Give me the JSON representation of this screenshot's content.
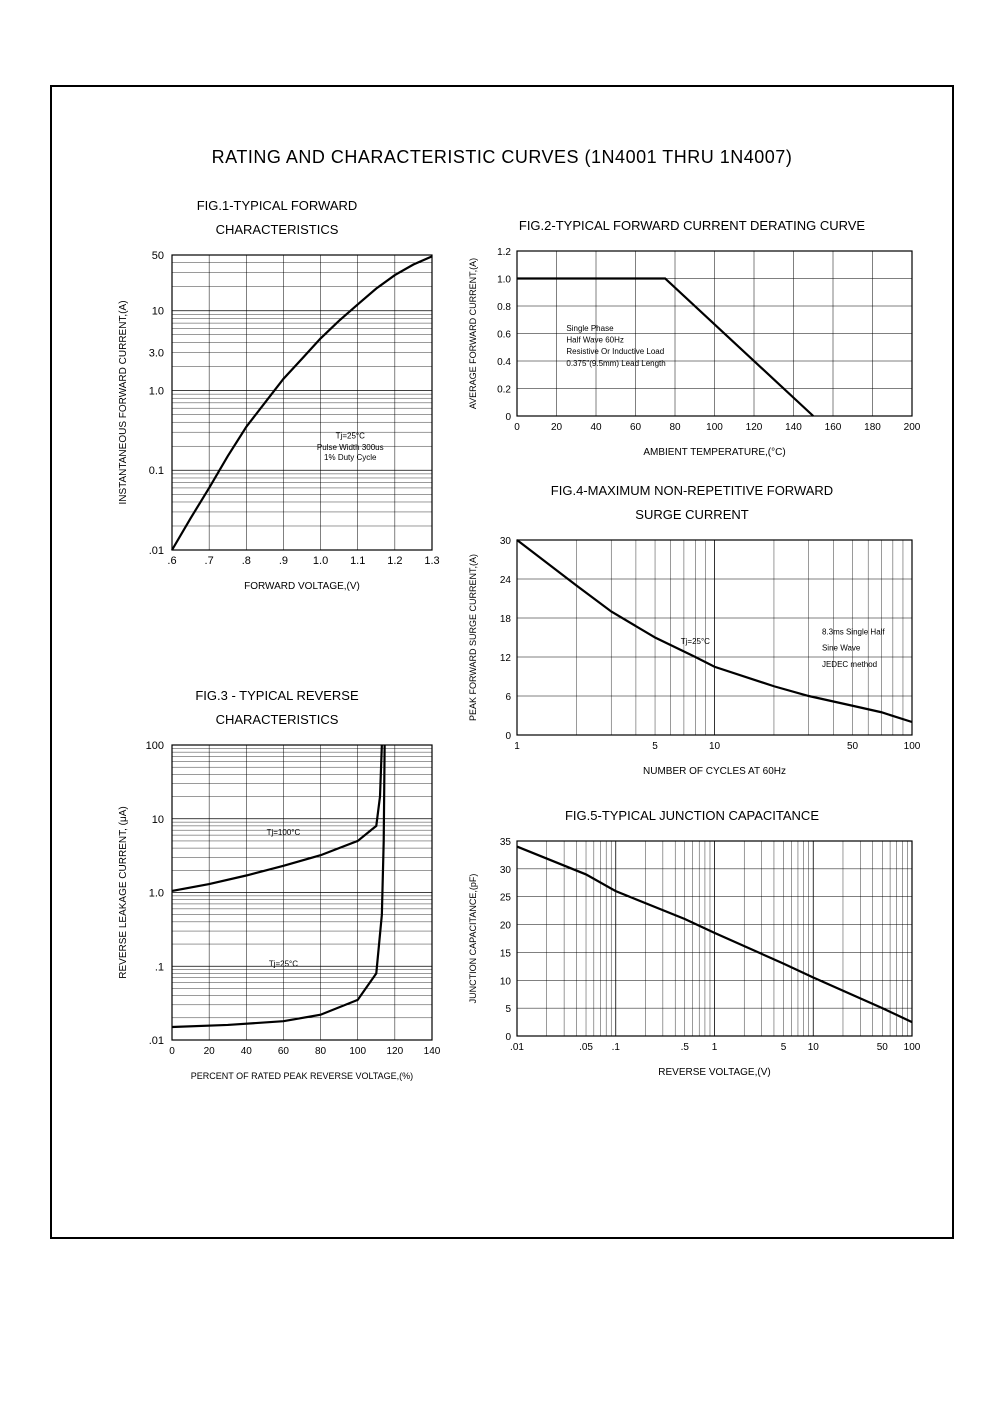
{
  "page_title": "RATING AND CHARACTERISTIC CURVES (1N4001 THRU 1N4007)",
  "colors": {
    "stroke": "#000000",
    "grid": "#000000",
    "bg": "#ffffff"
  },
  "fig1": {
    "title1": "FIG.1-TYPICAL FORWARD",
    "title2": "CHARACTERISTICS",
    "xlabel": "FORWARD VOLTAGE,(V)",
    "ylabel": "INSTANTANEOUS FORWARD CURRENT,(A)",
    "x_ticks": [
      ".6",
      ".7",
      ".8",
      ".9",
      "1.0",
      "1.1",
      "1.2",
      "1.3"
    ],
    "y_major_ticks": [
      "50",
      "10",
      "3.0",
      "1.0",
      "0.1",
      ".01"
    ],
    "note1": "Tj=25°C",
    "note2": "Pulse Width 300us",
    "note3": "1% Duty Cycle",
    "data": [
      [
        0.6,
        0.01
      ],
      [
        0.65,
        0.025
      ],
      [
        0.7,
        0.06
      ],
      [
        0.75,
        0.15
      ],
      [
        0.8,
        0.35
      ],
      [
        0.85,
        0.7
      ],
      [
        0.9,
        1.4
      ],
      [
        0.95,
        2.5
      ],
      [
        1.0,
        4.5
      ],
      [
        1.05,
        7.5
      ],
      [
        1.1,
        12
      ],
      [
        1.15,
        19
      ],
      [
        1.2,
        28
      ],
      [
        1.25,
        38
      ],
      [
        1.3,
        48
      ]
    ],
    "xlim": [
      0.6,
      1.3
    ],
    "ylim_log": [
      0.01,
      50
    ],
    "line_width": 2.2
  },
  "fig2": {
    "title": "FIG.2-TYPICAL FORWARD CURRENT DERATING CURVE",
    "xlabel": "AMBIENT TEMPERATURE,(°C)",
    "ylabel": "AVERAGE FORWARD CURRENT,(A)",
    "x_ticks": [
      "0",
      "20",
      "40",
      "60",
      "80",
      "100",
      "120",
      "140",
      "160",
      "180",
      "200"
    ],
    "y_ticks": [
      "0",
      "0.2",
      "0.4",
      "0.6",
      "0.8",
      "1.0",
      "1.2"
    ],
    "notes": [
      "Single Phase",
      "Half Wave 60Hz",
      "Resistive Or Inductive Load",
      "0.375\"(9.5mm) Lead Length"
    ],
    "data": [
      [
        0,
        1.0
      ],
      [
        75,
        1.0
      ],
      [
        150,
        0
      ]
    ],
    "xlim": [
      0,
      200
    ],
    "ylim": [
      0,
      1.2
    ],
    "line_width": 2.2
  },
  "fig4": {
    "title1": "FIG.4-MAXIMUM NON-REPETITIVE FORWARD",
    "title2": "SURGE CURRENT",
    "xlabel": "NUMBER OF CYCLES AT 60Hz",
    "ylabel": "PEAK FORWARD SURGE CURRENT,(A)",
    "x_ticks": [
      "1",
      "5",
      "10",
      "50",
      "100"
    ],
    "y_ticks": [
      "0",
      "6",
      "12",
      "18",
      "24",
      "30"
    ],
    "note1": "Tj=25°C",
    "note2a": "8.3ms Single Half",
    "note2b": "Sine Wave",
    "note2c": "JEDEC method",
    "data": [
      [
        1,
        30
      ],
      [
        2,
        23
      ],
      [
        3,
        19
      ],
      [
        5,
        15
      ],
      [
        8,
        12
      ],
      [
        10,
        10.5
      ],
      [
        20,
        7.5
      ],
      [
        30,
        6
      ],
      [
        50,
        4.5
      ],
      [
        70,
        3.5
      ],
      [
        100,
        2
      ]
    ],
    "xlim_log": [
      1,
      100
    ],
    "ylim": [
      0,
      30
    ],
    "line_width": 2.2
  },
  "fig3": {
    "title1": "FIG.3 - TYPICAL REVERSE",
    "title2": "CHARACTERISTICS",
    "xlabel": "PERCENT OF RATED PEAK REVERSE VOLTAGE,(%)",
    "ylabel": "REVERSE LEAKAGE CURRENT, (μA)",
    "x_ticks": [
      "0",
      "20",
      "40",
      "60",
      "80",
      "100",
      "120",
      "140"
    ],
    "y_major_ticks": [
      "100",
      "10",
      "1.0",
      ".1",
      ".01"
    ],
    "note_hot": "Tj=100°C",
    "note_cold": "Tj=25°C",
    "data_hot": [
      [
        0,
        1.05
      ],
      [
        20,
        1.3
      ],
      [
        40,
        1.7
      ],
      [
        60,
        2.3
      ],
      [
        80,
        3.2
      ],
      [
        100,
        5
      ],
      [
        110,
        8
      ],
      [
        112,
        20
      ],
      [
        113,
        100
      ]
    ],
    "data_cold": [
      [
        0,
        0.015
      ],
      [
        30,
        0.016
      ],
      [
        60,
        0.018
      ],
      [
        80,
        0.022
      ],
      [
        100,
        0.035
      ],
      [
        110,
        0.08
      ],
      [
        113,
        0.5
      ],
      [
        114,
        5
      ],
      [
        114.5,
        100
      ]
    ],
    "xlim": [
      0,
      140
    ],
    "ylim_log": [
      0.01,
      100
    ],
    "line_width": 2.2
  },
  "fig5": {
    "title": "FIG.5-TYPICAL JUNCTION CAPACITANCE",
    "xlabel": "REVERSE VOLTAGE,(V)",
    "ylabel": "JUNCTION CAPACITANCE,(pF)",
    "x_ticks": [
      ".01",
      ".05",
      ".1",
      ".5",
      "1",
      "5",
      "10",
      "50",
      "100"
    ],
    "y_ticks": [
      "0",
      "5",
      "10",
      "15",
      "20",
      "25",
      "30",
      "35"
    ],
    "data": [
      [
        0.01,
        34
      ],
      [
        0.05,
        29
      ],
      [
        0.1,
        26
      ],
      [
        0.5,
        21
      ],
      [
        1,
        18.5
      ],
      [
        5,
        13
      ],
      [
        10,
        10.5
      ],
      [
        50,
        5
      ],
      [
        100,
        2.5
      ]
    ],
    "xlim_log": [
      0.01,
      100
    ],
    "ylim": [
      0,
      35
    ],
    "line_width": 2.2
  }
}
